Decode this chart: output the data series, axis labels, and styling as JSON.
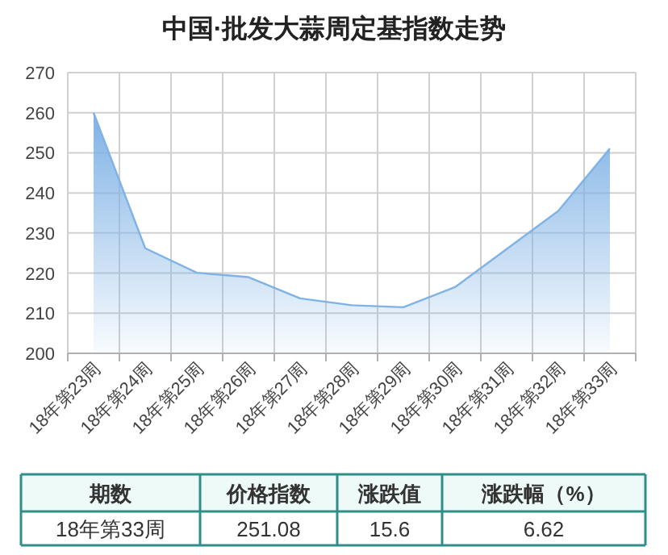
{
  "chart_data": {
    "type": "area",
    "title": "中国·批发大蒜周定基指数走势",
    "categories": [
      "18年第23周",
      "18年第24周",
      "18年第25周",
      "18年第26周",
      "18年第27周",
      "18年第28周",
      "18年第29周",
      "18年第30周",
      "18年第31周",
      "18年第32周",
      "18年第33周"
    ],
    "series": [
      {
        "color": "#7fb2e5",
        "values": [
          260,
          226.2,
          220.1,
          219,
          213.7,
          212,
          211.5,
          216.5,
          226,
          235.5,
          251.08
        ]
      }
    ],
    "ylim": [
      200,
      270
    ],
    "yticks": [
      200,
      210,
      220,
      230,
      240,
      250,
      260,
      270
    ],
    "grid": true,
    "annotations": [
      "期数",
      "价格指数",
      "涨跌值",
      "涨跌幅（%）",
      "18年第33周",
      "251.08",
      "15.6",
      "6.62"
    ]
  }
}
